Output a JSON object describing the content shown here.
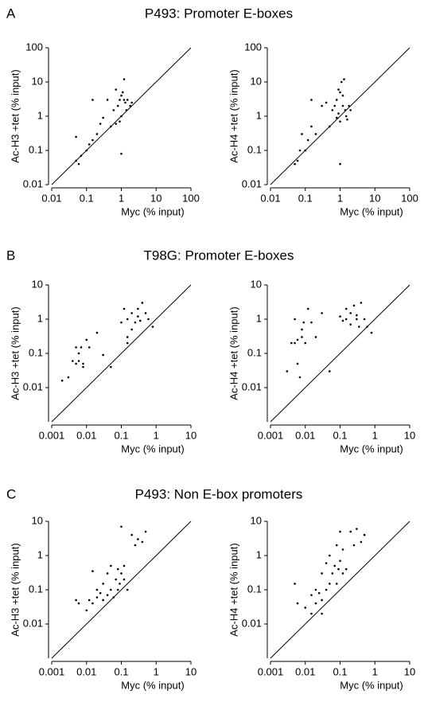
{
  "sections": [
    {
      "label": "A",
      "title": "P493: Promoter E-boxes"
    },
    {
      "label": "B",
      "title": "T98G: Promoter E-boxes"
    },
    {
      "label": "C",
      "title": "P493: Non E-box promoters"
    }
  ],
  "chart_data": [
    {
      "type": "scatter",
      "xlabel": "Myc (% input)",
      "ylabel": "Ac-H3 +tet (% input)",
      "log_scale": true,
      "diagonal": true,
      "color": "#000000",
      "xlim": [
        0.01,
        100
      ],
      "ylim": [
        0.01,
        100
      ],
      "xticks": [
        0.01,
        0.1,
        1,
        10,
        100
      ],
      "yticks": [
        0.01,
        0.1,
        1,
        10,
        100
      ],
      "x": [
        0.05,
        0.06,
        0.07,
        0.05,
        0.1,
        0.12,
        0.15,
        0.2,
        0.25,
        0.3,
        0.4,
        0.5,
        0.6,
        0.7,
        0.8,
        0.9,
        1,
        1,
        1.1,
        1.2,
        1.3,
        1.5,
        1.8,
        2,
        0.9,
        1,
        1.2,
        0.15,
        0.7,
        1.4
      ],
      "y": [
        0.05,
        0.04,
        0.07,
        0.25,
        0.1,
        0.15,
        0.2,
        0.3,
        0.6,
        0.9,
        3,
        0.5,
        1.5,
        6,
        2,
        3,
        4,
        1,
        5,
        3,
        2.5,
        3,
        2,
        2.5,
        0.7,
        0.08,
        12,
        3,
        0.6,
        1.5
      ]
    },
    {
      "type": "scatter",
      "xlabel": "Myc (% input)",
      "ylabel": "Ac-H4 +tet (% input)",
      "log_scale": true,
      "diagonal": true,
      "color": "#000000",
      "xlim": [
        0.01,
        100
      ],
      "ylim": [
        0.01,
        100
      ],
      "xticks": [
        0.01,
        0.1,
        1,
        10,
        100
      ],
      "yticks": [
        0.01,
        0.1,
        1,
        10,
        100
      ],
      "x": [
        0.05,
        0.06,
        0.08,
        0.1,
        0.12,
        0.15,
        0.2,
        0.3,
        0.4,
        0.5,
        0.6,
        0.7,
        0.8,
        0.9,
        1,
        1,
        1.1,
        1.2,
        1.3,
        1.5,
        1.8,
        2,
        1,
        0.9,
        1.2,
        0.15,
        0.07,
        1.4,
        0.8,
        1.6
      ],
      "y": [
        0.04,
        0.05,
        0.3,
        0.1,
        0.2,
        0.5,
        0.3,
        2,
        2.5,
        0.5,
        1.5,
        2,
        3,
        6,
        5,
        0.04,
        10,
        2,
        12,
        1,
        2,
        1.5,
        0.7,
        1.2,
        4,
        3,
        0.1,
        1.5,
        0.9,
        0.8
      ]
    },
    {
      "type": "scatter",
      "xlabel": "Myc (% input)",
      "ylabel": "Ac-H3 +tet (% input)",
      "log_scale": true,
      "diagonal": true,
      "color": "#000000",
      "xlim": [
        0.001,
        10
      ],
      "ylim": [
        0.001,
        10
      ],
      "xticks": [
        0.001,
        0.01,
        0.1,
        1,
        10
      ],
      "yticks": [
        0.01,
        0.1,
        1,
        10
      ],
      "x": [
        0.002,
        0.003,
        0.004,
        0.005,
        0.005,
        0.006,
        0.006,
        0.007,
        0.008,
        0.008,
        0.01,
        0.012,
        0.02,
        0.03,
        0.05,
        0.1,
        0.12,
        0.15,
        0.15,
        0.2,
        0.2,
        0.25,
        0.3,
        0.3,
        0.35,
        0.4,
        0.5,
        0.6,
        0.8,
        0.15
      ],
      "y": [
        0.016,
        0.02,
        0.06,
        0.15,
        0.05,
        0.1,
        0.06,
        0.15,
        0.05,
        0.04,
        0.25,
        0.15,
        0.4,
        0.09,
        0.04,
        0.8,
        2,
        1,
        0.3,
        1.5,
        0.5,
        0.8,
        1.2,
        2,
        0.9,
        3,
        1.5,
        1,
        0.6,
        0.2
      ]
    },
    {
      "type": "scatter",
      "xlabel": "Myc (% input)",
      "ylabel": "Ac-H4 +tet (% input)",
      "log_scale": true,
      "diagonal": true,
      "color": "#000000",
      "xlim": [
        0.001,
        10
      ],
      "ylim": [
        0.001,
        10
      ],
      "xticks": [
        0.001,
        0.01,
        0.1,
        1,
        10
      ],
      "yticks": [
        0.01,
        0.1,
        1,
        10
      ],
      "x": [
        0.003,
        0.004,
        0.005,
        0.005,
        0.006,
        0.006,
        0.007,
        0.008,
        0.008,
        0.009,
        0.01,
        0.012,
        0.015,
        0.02,
        0.03,
        0.05,
        0.1,
        0.12,
        0.15,
        0.15,
        0.2,
        0.2,
        0.25,
        0.3,
        0.3,
        0.35,
        0.4,
        0.5,
        0.6,
        0.8
      ],
      "y": [
        0.03,
        0.2,
        0.2,
        1,
        0.05,
        0.25,
        0.02,
        0.3,
        0.5,
        0.8,
        0.2,
        2,
        0.8,
        0.3,
        1.5,
        0.03,
        1.2,
        0.9,
        2,
        1,
        1.5,
        0.7,
        2.5,
        1,
        1.3,
        0.6,
        3,
        1,
        0.6,
        0.4
      ]
    },
    {
      "type": "scatter",
      "xlabel": "Myc (% input)",
      "ylabel": "Ac-H3 +tet (% input)",
      "log_scale": true,
      "diagonal": true,
      "color": "#000000",
      "xlim": [
        0.001,
        10
      ],
      "ylim": [
        0.001,
        10
      ],
      "xticks": [
        0.001,
        0.01,
        0.1,
        1,
        10
      ],
      "yticks": [
        0.01,
        0.1,
        1,
        10
      ],
      "x": [
        0.005,
        0.006,
        0.01,
        0.012,
        0.015,
        0.015,
        0.02,
        0.02,
        0.025,
        0.03,
        0.03,
        0.04,
        0.04,
        0.05,
        0.05,
        0.06,
        0.07,
        0.08,
        0.08,
        0.09,
        0.1,
        0.1,
        0.12,
        0.12,
        0.15,
        0.2,
        0.25,
        0.3,
        0.4,
        0.5
      ],
      "y": [
        0.05,
        0.04,
        0.025,
        0.05,
        0.04,
        0.35,
        0.06,
        0.1,
        0.08,
        0.05,
        0.15,
        0.07,
        0.3,
        0.1,
        0.5,
        0.06,
        0.2,
        0.1,
        0.4,
        0.15,
        0.3,
        7,
        0.2,
        0.5,
        0.1,
        4,
        2,
        3,
        2.5,
        5
      ]
    },
    {
      "type": "scatter",
      "xlabel": "Myc (% input)",
      "ylabel": "Ac-H4 +tet (% input)",
      "log_scale": true,
      "diagonal": true,
      "color": "#000000",
      "xlim": [
        0.001,
        10
      ],
      "ylim": [
        0.001,
        10
      ],
      "xticks": [
        0.001,
        0.01,
        0.1,
        1,
        10
      ],
      "yticks": [
        0.01,
        0.1,
        1,
        10
      ],
      "x": [
        0.005,
        0.006,
        0.01,
        0.015,
        0.015,
        0.02,
        0.02,
        0.025,
        0.03,
        0.03,
        0.04,
        0.04,
        0.05,
        0.05,
        0.06,
        0.07,
        0.08,
        0.08,
        0.09,
        0.1,
        0.1,
        0.12,
        0.12,
        0.15,
        0.2,
        0.25,
        0.3,
        0.4,
        0.5,
        0.03
      ],
      "y": [
        0.15,
        0.04,
        0.03,
        0.02,
        0.07,
        0.1,
        0.04,
        0.08,
        0.02,
        0.3,
        0.1,
        0.6,
        0.15,
        1,
        0.3,
        0.5,
        0.15,
        2,
        0.4,
        5,
        0.7,
        0.3,
        1.5,
        0.4,
        5,
        2,
        6,
        2.5,
        4,
        0.05
      ]
    }
  ]
}
